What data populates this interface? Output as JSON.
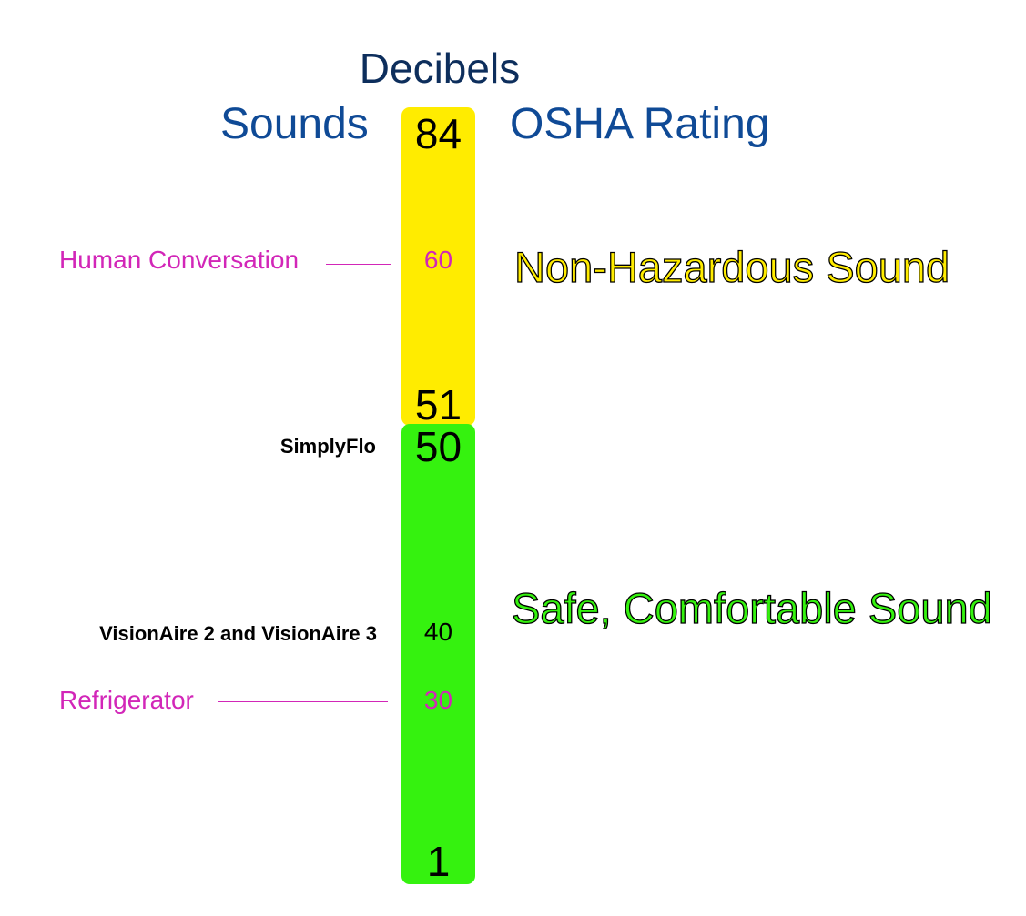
{
  "title": "Decibels",
  "headers": {
    "sounds": "Sounds",
    "osha": "OSHA Rating"
  },
  "scale": {
    "top": "84",
    "yellow_bottom": "51",
    "green_top": "50",
    "forty": "40",
    "bottom": "1",
    "conversation_value": "60",
    "refrigerator_value": "30"
  },
  "sounds": {
    "human_conversation": "Human Conversation",
    "refrigerator": "Refrigerator"
  },
  "products": {
    "simplyflo": "SimplyFlo",
    "visionaire": "VisionAire 2 and VisionAire 3"
  },
  "ratings": {
    "non_hazardous": "Non-Hazardous Sound",
    "safe": "Safe, Comfortable Sound"
  },
  "colors": {
    "title": "#0d2e5c",
    "header": "#0f4a96",
    "sound_label": "#d226b8",
    "yellow_zone": "#ffec00",
    "green_zone": "#35f20f"
  }
}
